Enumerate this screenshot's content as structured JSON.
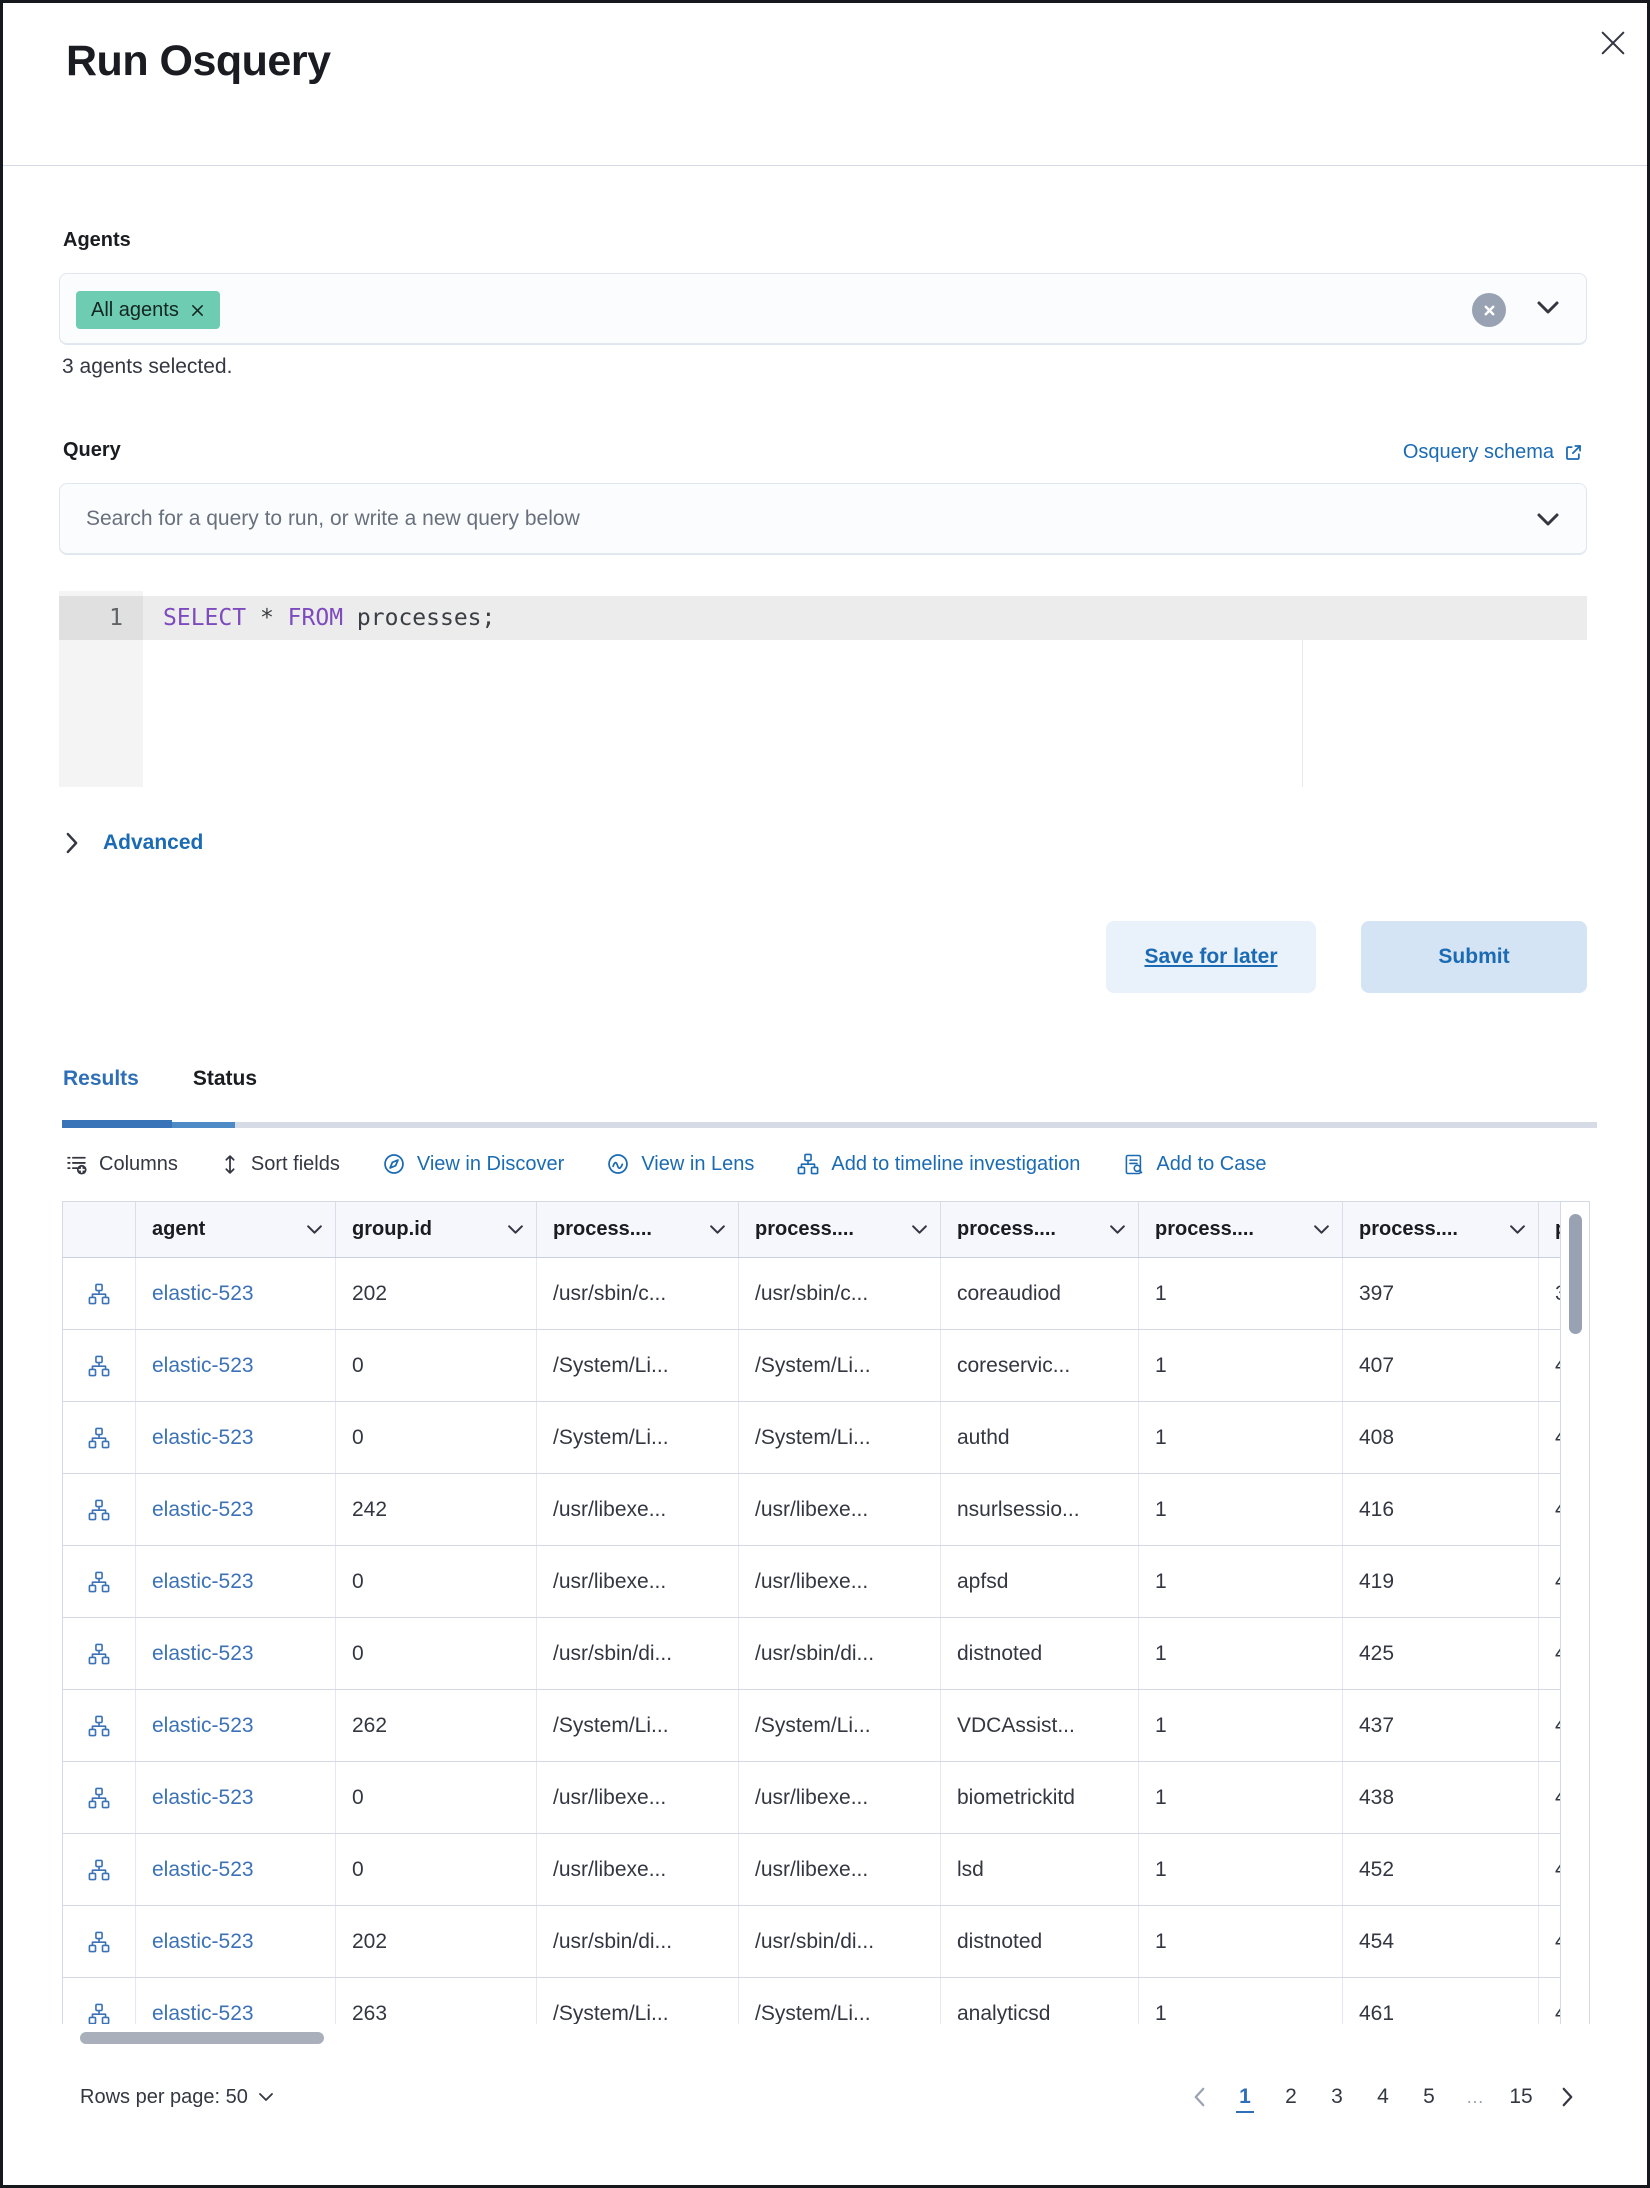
{
  "modal": {
    "title": "Run Osquery"
  },
  "agents": {
    "label": "Agents",
    "selected_badge": "All agents",
    "selected_info": "3 agents selected."
  },
  "query": {
    "label": "Query",
    "schema_link": "Osquery schema",
    "search_placeholder": "Search for a query to run, or write a new query below",
    "editor": {
      "line_number": "1",
      "tokens": [
        {
          "text": "SELECT",
          "style": "keyword"
        },
        {
          "text": " ",
          "style": "plain"
        },
        {
          "text": "*",
          "style": "plain"
        },
        {
          "text": " ",
          "style": "plain"
        },
        {
          "text": "FROM",
          "style": "keyword"
        },
        {
          "text": " processes;",
          "style": "plain"
        }
      ]
    }
  },
  "advanced_label": "Advanced",
  "actions": {
    "save_label": "Save for later",
    "submit_label": "Submit"
  },
  "tabs": [
    {
      "label": "Results",
      "active": true
    },
    {
      "label": "Status",
      "active": false
    }
  ],
  "toolbar": {
    "items": [
      {
        "label": "Columns",
        "icon": "columns-icon",
        "blue": false
      },
      {
        "label": "Sort fields",
        "icon": "sort-fields-icon",
        "blue": false
      },
      {
        "label": "View in Discover",
        "icon": "discover-icon",
        "blue": true
      },
      {
        "label": "View in Lens",
        "icon": "lens-icon",
        "blue": true
      },
      {
        "label": "Add to timeline investigation",
        "icon": "timeline-icon",
        "blue": true
      },
      {
        "label": "Add to Case",
        "icon": "case-icon",
        "blue": true
      }
    ]
  },
  "grid": {
    "columns": [
      {
        "label": "",
        "has_chevron": false
      },
      {
        "label": "agent",
        "has_chevron": true
      },
      {
        "label": "group.id",
        "has_chevron": true
      },
      {
        "label": "process....",
        "has_chevron": true
      },
      {
        "label": "process....",
        "has_chevron": true
      },
      {
        "label": "process....",
        "has_chevron": true
      },
      {
        "label": "process....",
        "has_chevron": true
      },
      {
        "label": "process....",
        "has_chevron": true
      },
      {
        "label": "p",
        "has_chevron": false
      }
    ],
    "rows": [
      {
        "agent": "elastic-523",
        "group_id": "202",
        "p1": "/usr/sbin/c...",
        "p2": "/usr/sbin/c...",
        "p3": "coreaudiod",
        "p4": "1",
        "p5": "397",
        "p6": "3"
      },
      {
        "agent": "elastic-523",
        "group_id": "0",
        "p1": "/System/Li...",
        "p2": "/System/Li...",
        "p3": "coreservic...",
        "p4": "1",
        "p5": "407",
        "p6": "4"
      },
      {
        "agent": "elastic-523",
        "group_id": "0",
        "p1": "/System/Li...",
        "p2": "/System/Li...",
        "p3": "authd",
        "p4": "1",
        "p5": "408",
        "p6": "4"
      },
      {
        "agent": "elastic-523",
        "group_id": "242",
        "p1": "/usr/libexe...",
        "p2": "/usr/libexe...",
        "p3": "nsurlsessio...",
        "p4": "1",
        "p5": "416",
        "p6": "4"
      },
      {
        "agent": "elastic-523",
        "group_id": "0",
        "p1": "/usr/libexe...",
        "p2": "/usr/libexe...",
        "p3": "apfsd",
        "p4": "1",
        "p5": "419",
        "p6": "4"
      },
      {
        "agent": "elastic-523",
        "group_id": "0",
        "p1": "/usr/sbin/di...",
        "p2": "/usr/sbin/di...",
        "p3": "distnoted",
        "p4": "1",
        "p5": "425",
        "p6": "4"
      },
      {
        "agent": "elastic-523",
        "group_id": "262",
        "p1": "/System/Li...",
        "p2": "/System/Li...",
        "p3": "VDCAssist...",
        "p4": "1",
        "p5": "437",
        "p6": "4"
      },
      {
        "agent": "elastic-523",
        "group_id": "0",
        "p1": "/usr/libexe...",
        "p2": "/usr/libexe...",
        "p3": "biometrickitd",
        "p4": "1",
        "p5": "438",
        "p6": "4"
      },
      {
        "agent": "elastic-523",
        "group_id": "0",
        "p1": "/usr/libexe...",
        "p2": "/usr/libexe...",
        "p3": "lsd",
        "p4": "1",
        "p5": "452",
        "p6": "4"
      },
      {
        "agent": "elastic-523",
        "group_id": "202",
        "p1": "/usr/sbin/di...",
        "p2": "/usr/sbin/di...",
        "p3": "distnoted",
        "p4": "1",
        "p5": "454",
        "p6": "4"
      },
      {
        "agent": "elastic-523",
        "group_id": "263",
        "p1": "/System/Li...",
        "p2": "/System/Li...",
        "p3": "analyticsd",
        "p4": "1",
        "p5": "461",
        "p6": "4"
      }
    ]
  },
  "pagination": {
    "rows_per_page_label": "Rows per page: 50",
    "pages": [
      {
        "label": "1",
        "active": true
      },
      {
        "label": "2",
        "active": false
      },
      {
        "label": "3",
        "active": false
      },
      {
        "label": "4",
        "active": false
      },
      {
        "label": "5",
        "active": false
      },
      {
        "label": "…",
        "active": false,
        "ellipsis": true
      },
      {
        "label": "15",
        "active": false
      }
    ]
  },
  "colors": {
    "primary_blue": "#1b6bb4",
    "row_link_blue": "#3c72b6",
    "badge_green": "#6dccb1",
    "keyword_purple": "#7d4bbd",
    "divider": "#d3dae6"
  }
}
